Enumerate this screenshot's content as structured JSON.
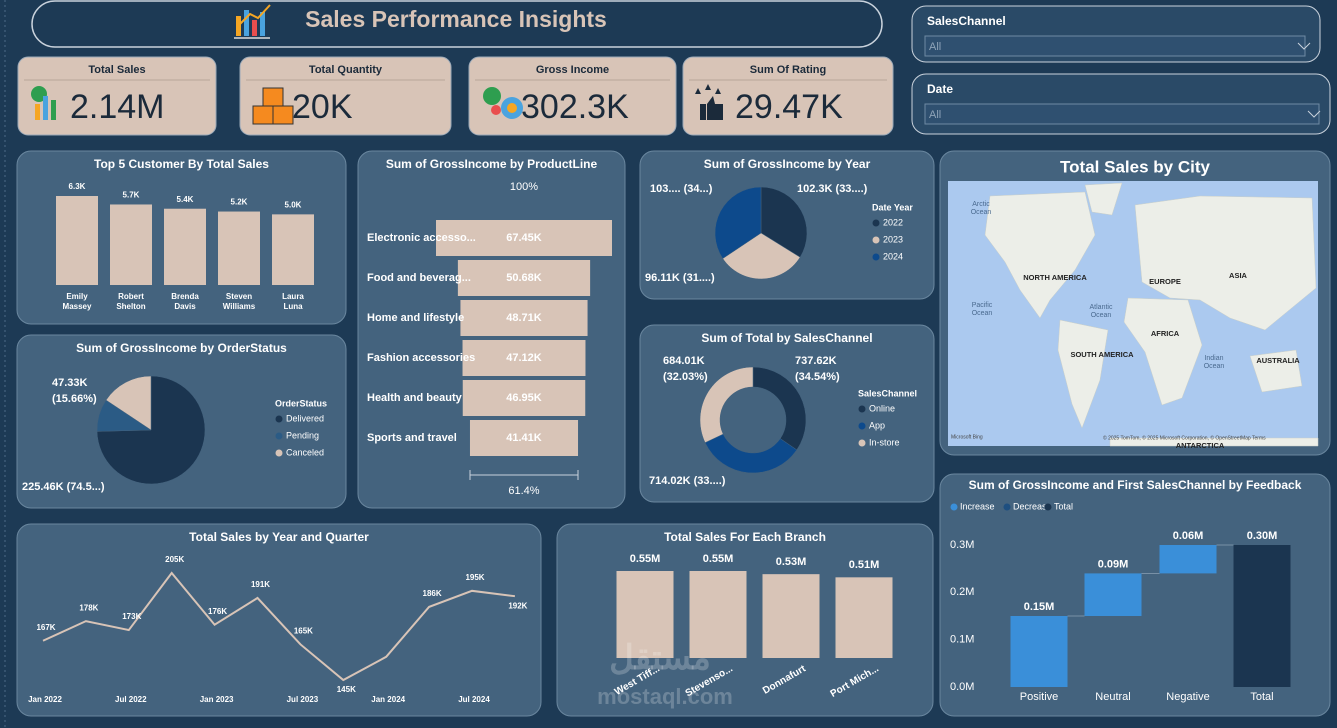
{
  "header": {
    "title": "Sales Performance Insights"
  },
  "kpis": [
    {
      "label": "Total Sales",
      "value": "2.14M"
    },
    {
      "label": "Total Quantity",
      "value": "20K"
    },
    {
      "label": "Gross Income",
      "value": "302.3K"
    },
    {
      "label": "Sum Of Rating",
      "value": "29.47K"
    }
  ],
  "slicers": [
    {
      "label": "SalesChannel",
      "value": "All"
    },
    {
      "label": "Date",
      "value": "All"
    }
  ],
  "map": {
    "title": "Total Sales by City",
    "labels": [
      "Arctic Ocean",
      "NORTH AMERICA",
      "Atlantic Ocean",
      "EUROPE",
      "ASIA",
      "AFRICA",
      "Pacific Ocean",
      "SOUTH AMERICA",
      "Indian Ocean",
      "AUSTRALIA",
      "ANTARCTICA"
    ],
    "provider": "Microsoft Bing",
    "credit": "© 2025 TomTom, © 2025 Microsoft Corporation, © OpenStreetMap  Terms"
  },
  "watermark": [
    "مستقل",
    "mostaql.com"
  ],
  "chart_data": [
    {
      "type": "bar",
      "title": "Top 5 Customer By Total Sales",
      "categories": [
        "Emily Massey",
        "Robert Shelton",
        "Brenda Davis",
        "Steven Williams",
        "Laura Luna"
      ],
      "values": [
        6300,
        5700,
        5400,
        5200,
        5000
      ],
      "value_labels": [
        "6.3K",
        "5.7K",
        "5.4K",
        "5.2K",
        "5.0K"
      ],
      "color": "#d8c4b7"
    },
    {
      "type": "funnel",
      "title": "Sum of GrossIncome by ProductLine",
      "categories": [
        "Electronic accesso...",
        "Food and beverag...",
        "Home and lifestyle",
        "Fashion accessories",
        "Health and beauty",
        "Sports and travel"
      ],
      "values": [
        67450,
        50680,
        48710,
        47120,
        46950,
        41410
      ],
      "value_labels": [
        "67.45K",
        "50.68K",
        "48.71K",
        "47.12K",
        "46.95K",
        "41.41K"
      ],
      "percent_labels": [
        "100%",
        "61.4%"
      ],
      "color": "#d8c4b7"
    },
    {
      "type": "pie",
      "title": "Sum of GrossIncome by Year",
      "legend_title": "Date Year",
      "categories": [
        "2022",
        "2023",
        "2024"
      ],
      "values": [
        102300,
        96110,
        103890
      ],
      "value_labels": [
        "102.3K (33....)",
        "96.11K (31....)",
        "103.... (34...)"
      ],
      "colors": [
        "#1b3550",
        "#d8c4b7",
        "#0d4a8c"
      ]
    },
    {
      "type": "donut",
      "title": "Sum of Total by SalesChannel",
      "legend_title": "SalesChannel",
      "categories": [
        "Online",
        "App",
        "In-store"
      ],
      "values": [
        737620,
        714020,
        684010
      ],
      "value_labels": [
        "737.62K (34.54%)",
        "714.02K (33....)",
        "684.01K (32.03%)"
      ],
      "colors": [
        "#1b3550",
        "#0d4a8c",
        "#d8c4b7"
      ]
    },
    {
      "type": "pie",
      "title": "Sum of GrossIncome by OrderStatus",
      "legend_title": "OrderStatus",
      "categories": [
        "Delivered",
        "Pending",
        "Canceled"
      ],
      "values": [
        225460,
        29510,
        47330
      ],
      "value_labels": [
        "225.46K (74.5...)",
        null,
        "47.33K (15.66%)"
      ],
      "colors": [
        "#1b3550",
        "#2b5b85",
        "#d8c4b7"
      ]
    },
    {
      "type": "line",
      "title": "Total Sales by Year and Quarter",
      "categories": [
        "Jan 2022",
        null,
        "Jul 2022",
        null,
        "Jan 2023",
        null,
        "Jul 2023",
        null,
        "Jan 2024",
        null,
        "Jul 2024",
        null
      ],
      "values": [
        167000,
        178000,
        173000,
        205000,
        176000,
        191000,
        165000,
        145000,
        158000,
        186000,
        195000,
        192000
      ],
      "value_labels": [
        "167K",
        "178K",
        "173K",
        "205K",
        "176K",
        "191K",
        "165K",
        "145K",
        null,
        "186K",
        "195K",
        "192K"
      ],
      "color": "#d8c4b7"
    },
    {
      "type": "bar",
      "title": "Total Sales For Each Branch",
      "categories": [
        "West Tiff...",
        "Stevenso...",
        "Donnafurt",
        "Port Mich..."
      ],
      "values": [
        550000,
        550000,
        530000,
        510000
      ],
      "value_labels": [
        "0.55M",
        "0.55M",
        "0.53M",
        "0.51M"
      ],
      "color": "#d8c4b7"
    },
    {
      "type": "waterfall",
      "title": "Sum of GrossIncome and First SalesChannel by Feedback",
      "categories": [
        "Positive",
        "Neutral",
        "Negative",
        "Total"
      ],
      "values": [
        0.15,
        0.09,
        0.06,
        0.3
      ],
      "value_labels": [
        "0.15M",
        "0.09M",
        "0.06M",
        "0.30M"
      ],
      "ylim": [
        0,
        0.3
      ],
      "yticks": [
        {
          "value": 0,
          "label": "0.0M"
        },
        {
          "value": 0.1,
          "label": "0.1M"
        },
        {
          "value": 0.2,
          "label": "0.2M"
        },
        {
          "value": 0.3,
          "label": "0.3M"
        }
      ],
      "legend": [
        {
          "name": "Increase",
          "color": "#3a8fd9"
        },
        {
          "name": "Decrease",
          "color": "#1e4f80"
        },
        {
          "name": "Total",
          "color": "#1b3550"
        }
      ]
    }
  ]
}
